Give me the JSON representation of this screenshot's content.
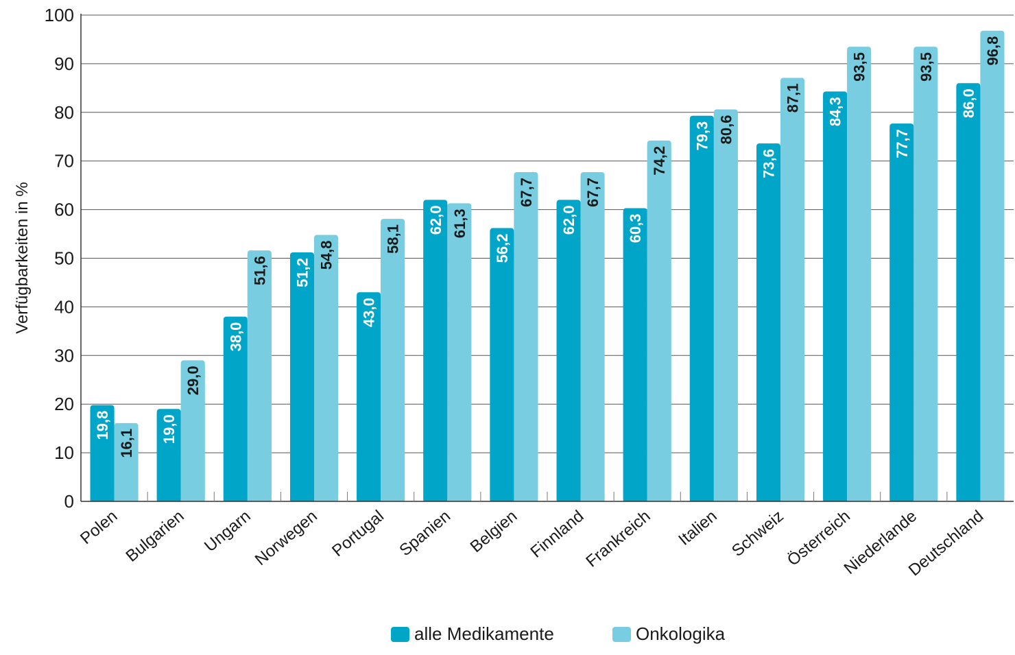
{
  "chart_data": {
    "type": "bar",
    "ylabel": "Verfügbarkeiten in %",
    "ylim": [
      0,
      100
    ],
    "yticks": [
      0,
      10,
      20,
      30,
      40,
      50,
      60,
      70,
      80,
      90,
      100
    ],
    "grid": true,
    "legend_position": "bottom",
    "categories": [
      "Polen",
      "Bulgarien",
      "Ungarn",
      "Norwegen",
      "Portugal",
      "Spanien",
      "Belgien",
      "Finnland",
      "Frankreich",
      "Italien",
      "Schweiz",
      "Österreich",
      "Niederlande",
      "Deutschland"
    ],
    "series": [
      {
        "name": "alle Medikamente",
        "color": "#00a5c8",
        "values": [
          19.8,
          19.0,
          38.0,
          51.2,
          43.0,
          62.0,
          56.2,
          62.0,
          60.3,
          79.3,
          73.6,
          84.3,
          77.7,
          86.0
        ],
        "labels": [
          "19,8",
          "19,0",
          "38,0",
          "51,2",
          "43,0",
          "62,0",
          "56,2",
          "62,0",
          "60,3",
          "79,3",
          "73,6",
          "84,3",
          "77,7",
          "86,0"
        ],
        "label_color": "#ffffff"
      },
      {
        "name": "Onkologika",
        "color": "#79cde0",
        "values": [
          16.1,
          29.0,
          51.6,
          54.8,
          58.1,
          61.3,
          67.7,
          67.7,
          74.2,
          80.6,
          87.1,
          93.5,
          93.5,
          96.8
        ],
        "labels": [
          "16,1",
          "29,0",
          "51,6",
          "54,8",
          "58,1",
          "61,3",
          "67,7",
          "67,7",
          "74,2",
          "80,6",
          "87,1",
          "93,5",
          "93,5",
          "96,8"
        ],
        "label_color": "#1a1a1a"
      }
    ]
  }
}
